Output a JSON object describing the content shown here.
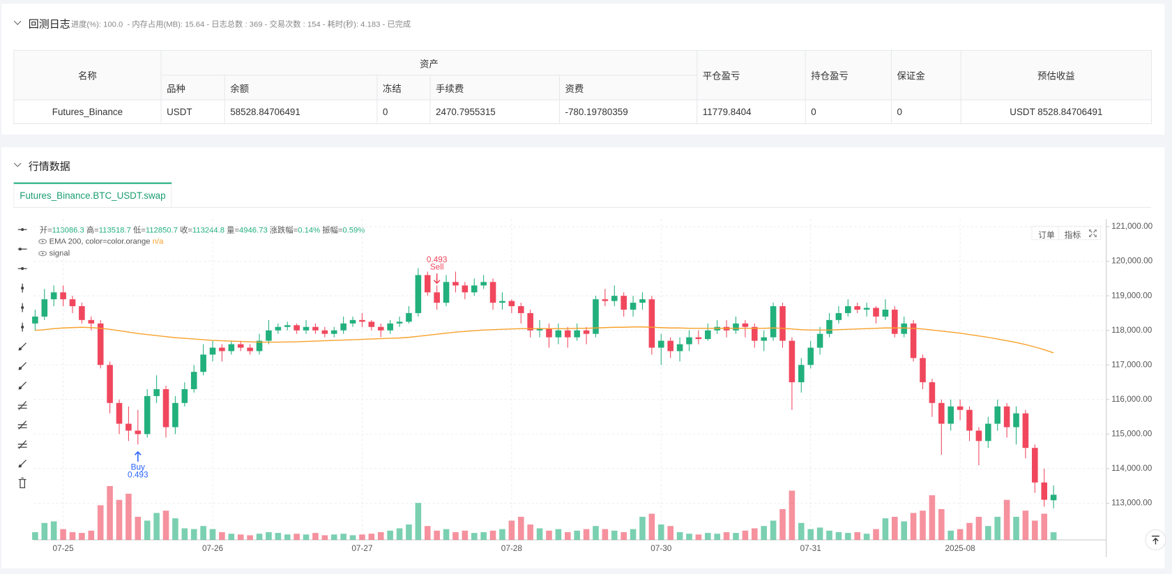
{
  "backtest_log": {
    "title": "回测日志",
    "status": "进度(%): 100.0  - 内存占用(MB): 15.64 - 日志总数 : 369 - 交易次数 : 154 - 耗时(秒): 4.183 - 已完成"
  },
  "table": {
    "headers": [
      "名称",
      "资产",
      "平仓盈亏",
      "持仓盈亏",
      "保证金",
      "预估收益"
    ],
    "sub_headers": [
      "品种",
      "余额",
      "冻结",
      "手续费",
      "资费"
    ],
    "rows": [
      [
        "Futures_Binance",
        "USDT",
        58528.84706491,
        0,
        2470.7955315,
        -780.19780359,
        11779.8404,
        0,
        0,
        "USDT 8528.84706491"
      ]
    ]
  },
  "market": {
    "title": "行情数据",
    "tab": "Futures_Binance.BTC_USDT.swap",
    "buttons": [
      "订单",
      "指标"
    ]
  },
  "chart_data": {
    "type": "candlestick",
    "legend_items": [
      {
        "label": "开=",
        "value": "113086.3"
      },
      {
        "label": "高=",
        "value": "113518.7"
      },
      {
        "label": "低=",
        "value": "112850.7"
      },
      {
        "label": "收=",
        "value": "113244.8"
      },
      {
        "label": "量=",
        "value": "4946.73"
      },
      {
        "label": "涨跌幅=",
        "value": "0.14%"
      },
      {
        "label": "振幅=",
        "value": "0.59%"
      }
    ],
    "up_color": "#22b07d",
    "down_color": "#f0475d",
    "ylim": [
      111940,
      121220
    ],
    "yticks": [
      {
        "value": 121000,
        "label": "121,000.00"
      },
      {
        "value": 120000,
        "label": "120,000.00"
      },
      {
        "value": 119000,
        "label": "119,000.00"
      },
      {
        "value": 118000,
        "label": "118,000.00"
      },
      {
        "value": 117000,
        "label": "117,000.00"
      },
      {
        "value": 116000,
        "label": "116,000.00"
      },
      {
        "value": 115000,
        "label": "115,000.00"
      },
      {
        "value": 114000,
        "label": "114,000.00"
      },
      {
        "value": 113000,
        "label": "113,000.00"
      }
    ],
    "grid": true,
    "categories": [
      null,
      null,
      null,
      "07-25",
      null,
      null,
      null,
      null,
      null,
      null,
      null,
      null,
      null,
      null,
      null,
      null,
      null,
      null,
      null,
      "07-26",
      null,
      null,
      null,
      null,
      null,
      null,
      null,
      null,
      null,
      null,
      null,
      null,
      null,
      null,
      null,
      "07-27",
      null,
      null,
      null,
      null,
      null,
      null,
      null,
      null,
      null,
      null,
      null,
      null,
      null,
      null,
      null,
      "07-28",
      null,
      null,
      null,
      null,
      null,
      null,
      null,
      null,
      null,
      null,
      null,
      null,
      null,
      null,
      null,
      "07-30",
      null,
      null,
      null,
      null,
      null,
      null,
      null,
      null,
      null,
      null,
      null,
      null,
      null,
      null,
      null,
      "07-31",
      null,
      null,
      null,
      null,
      null,
      null,
      null,
      null,
      null,
      null,
      null,
      null,
      null,
      null,
      null,
      "2025-08",
      null,
      null,
      null,
      null,
      null,
      null,
      null,
      null,
      null,
      null
    ],
    "candles": [
      [
        118200,
        118600,
        118000,
        118400
      ],
      [
        118400,
        119200,
        118300,
        118900
      ],
      [
        118900,
        119300,
        118700,
        119100
      ],
      [
        119100,
        119300,
        118700,
        118900
      ],
      [
        118900,
        119000,
        118500,
        118700
      ],
      [
        118700,
        118800,
        118200,
        118300
      ],
      [
        118300,
        118400,
        118000,
        118200
      ],
      [
        118200,
        118300,
        116900,
        117000
      ],
      [
        117000,
        117100,
        115600,
        115900
      ],
      [
        115900,
        116000,
        115000,
        115300
      ],
      [
        115300,
        115800,
        114800,
        115100
      ],
      [
        115100,
        115700,
        114700,
        115000
      ],
      [
        115000,
        116300,
        114900,
        116100
      ],
      [
        116100,
        116700,
        115900,
        116300
      ],
      [
        116300,
        116400,
        114900,
        115200
      ],
      [
        115200,
        116100,
        115000,
        115900
      ],
      [
        115900,
        116500,
        115800,
        116300
      ],
      [
        116300,
        117000,
        116200,
        116800
      ],
      [
        116800,
        117600,
        116700,
        117300
      ],
      [
        117300,
        117700,
        117100,
        117500
      ],
      [
        117500,
        117600,
        117100,
        117400
      ],
      [
        117400,
        117700,
        117300,
        117600
      ],
      [
        117600,
        117700,
        117400,
        117500
      ],
      [
        117500,
        117600,
        117300,
        117400
      ],
      [
        117400,
        117900,
        117300,
        117700
      ],
      [
        117700,
        118300,
        117600,
        118000
      ],
      [
        118000,
        118200,
        117900,
        118100
      ],
      [
        118100,
        118250,
        118000,
        118150
      ],
      [
        118150,
        118200,
        117900,
        118000
      ],
      [
        118000,
        118300,
        117900,
        118100
      ],
      [
        118100,
        118200,
        117900,
        118000
      ],
      [
        118000,
        118100,
        117800,
        117900
      ],
      [
        117900,
        118100,
        117800,
        118000
      ],
      [
        118000,
        118400,
        117900,
        118200
      ],
      [
        118200,
        118400,
        118100,
        118300
      ],
      [
        118300,
        118500,
        118100,
        118250
      ],
      [
        118250,
        118300,
        118000,
        118100
      ],
      [
        118100,
        118200,
        117800,
        118000
      ],
      [
        118000,
        118300,
        117900,
        118200
      ],
      [
        118200,
        118400,
        118100,
        118250
      ],
      [
        118250,
        118700,
        118200,
        118500
      ],
      [
        118500,
        119800,
        118400,
        119600
      ],
      [
        119600,
        119700,
        119000,
        119100
      ],
      [
        119100,
        119300,
        118600,
        118800
      ],
      [
        118800,
        119600,
        118700,
        119400
      ],
      [
        119400,
        119700,
        119100,
        119300
      ],
      [
        119300,
        119400,
        118900,
        119100
      ],
      [
        119100,
        119500,
        119000,
        119300
      ],
      [
        119300,
        119600,
        119200,
        119400
      ],
      [
        119400,
        119500,
        118600,
        118800
      ],
      [
        118800,
        119100,
        118600,
        118850
      ],
      [
        118850,
        118900,
        118500,
        118700
      ],
      [
        118700,
        118800,
        118200,
        118500
      ],
      [
        118500,
        118600,
        117800,
        118000
      ],
      [
        118000,
        118300,
        117800,
        118050
      ],
      [
        118050,
        118200,
        117500,
        117800
      ],
      [
        117800,
        118200,
        117600,
        118000
      ],
      [
        118000,
        118100,
        117500,
        117800
      ],
      [
        117800,
        118200,
        117700,
        118000
      ],
      [
        118000,
        118100,
        117600,
        117900
      ],
      [
        117900,
        119000,
        117800,
        118900
      ],
      [
        118900,
        119200,
        118700,
        118850
      ],
      [
        118850,
        119300,
        118700,
        119000
      ],
      [
        119000,
        119100,
        118400,
        118600
      ],
      [
        118600,
        119000,
        118400,
        118800
      ],
      [
        118800,
        119100,
        118600,
        118900
      ],
      [
        118900,
        119000,
        117300,
        117500
      ],
      [
        117500,
        117900,
        117000,
        117700
      ],
      [
        117700,
        117800,
        117200,
        117400
      ],
      [
        117400,
        117800,
        117100,
        117600
      ],
      [
        117600,
        118000,
        117400,
        117800
      ],
      [
        117800,
        118000,
        117600,
        117750
      ],
      [
        117750,
        118200,
        117700,
        118000
      ],
      [
        118000,
        118300,
        117900,
        118100
      ],
      [
        118100,
        118300,
        117800,
        118000
      ],
      [
        118000,
        118400,
        117900,
        118200
      ],
      [
        118200,
        118300,
        117800,
        118100
      ],
      [
        118100,
        118200,
        117500,
        117700
      ],
      [
        117700,
        118000,
        117400,
        117800
      ],
      [
        117800,
        118800,
        117700,
        118700
      ],
      [
        118700,
        118800,
        117500,
        117700
      ],
      [
        117700,
        117800,
        115700,
        116500
      ],
      [
        116500,
        117200,
        116200,
        117000
      ],
      [
        117000,
        117700,
        116900,
        117500
      ],
      [
        117500,
        118100,
        117300,
        117900
      ],
      [
        117900,
        118500,
        117800,
        118300
      ],
      [
        118300,
        118700,
        118200,
        118500
      ],
      [
        118500,
        118900,
        118400,
        118700
      ],
      [
        118700,
        118800,
        118500,
        118600
      ],
      [
        118600,
        118800,
        118400,
        118650
      ],
      [
        118650,
        118700,
        118200,
        118400
      ],
      [
        118400,
        118900,
        118300,
        118600
      ],
      [
        118600,
        118700,
        117800,
        117900
      ],
      [
        117900,
        118400,
        117800,
        118200
      ],
      [
        118200,
        118300,
        117100,
        117200
      ],
      [
        117200,
        117300,
        116300,
        116500
      ],
      [
        116500,
        116600,
        115500,
        115900
      ],
      [
        115900,
        116000,
        114400,
        115300
      ],
      [
        115300,
        116000,
        115100,
        115800
      ],
      [
        115800,
        116000,
        115400,
        115700
      ],
      [
        115700,
        115800,
        114800,
        115100
      ],
      [
        115100,
        115200,
        114100,
        114800
      ],
      [
        114800,
        115500,
        114600,
        115300
      ],
      [
        115300,
        116000,
        115100,
        115800
      ],
      [
        115800,
        115900,
        114900,
        115200
      ],
      [
        115200,
        115800,
        114700,
        115600
      ],
      [
        115600,
        115700,
        114300,
        114600
      ],
      [
        114600,
        114700,
        113300,
        113600
      ],
      [
        113600,
        114000,
        112900,
        113100
      ],
      [
        113086.3,
        113518.7,
        112850.7,
        113244.8
      ]
    ],
    "volumes": [
      5000,
      11000,
      12000,
      7000,
      5000,
      4500,
      6000,
      22500,
      35000,
      26000,
      30000,
      15000,
      12500,
      17500,
      19000,
      14000,
      7500,
      7000,
      9000,
      7000,
      5000,
      4000,
      3500,
      3000,
      4000,
      5000,
      4500,
      3500,
      4000,
      3500,
      4500,
      3000,
      3500,
      4000,
      3000,
      3500,
      4000,
      5000,
      6000,
      7500,
      10000,
      24000,
      9000,
      6000,
      7000,
      5000,
      6000,
      4500,
      5000,
      6000,
      7000,
      12500,
      15000,
      10000,
      7500,
      6000,
      7000,
      5000,
      6000,
      7000,
      9000,
      7000,
      6000,
      5000,
      7000,
      15000,
      17000,
      10000,
      9000,
      5000,
      4000,
      3500,
      4500,
      4000,
      5000,
      4500,
      6000,
      7500,
      9000,
      12500,
      20000,
      32000,
      11000,
      7000,
      8000,
      6000,
      5000,
      4500,
      5000,
      4000,
      7000,
      14000,
      15000,
      12000,
      17500,
      19000,
      29000,
      20000,
      6000,
      7000,
      11000,
      15000,
      9000,
      15000,
      26000,
      15000,
      19000,
      12500,
      17000,
      4946.73
    ],
    "series": [
      {
        "name": "EMA 200, color=color.orange",
        "status": "n/a",
        "color": "#f7a12a",
        "values": [
          118000,
          118020,
          118050,
          118070,
          118080,
          118090,
          118080,
          118060,
          118030,
          117990,
          117950,
          117910,
          117880,
          117850,
          117820,
          117790,
          117770,
          117750,
          117730,
          117710,
          117700,
          117690,
          117680,
          117670,
          117660,
          117660,
          117660,
          117665,
          117670,
          117680,
          117690,
          117700,
          117710,
          117720,
          117730,
          117740,
          117750,
          117760,
          117770,
          117780,
          117800,
          117830,
          117860,
          117890,
          117920,
          117950,
          117970,
          117990,
          118010,
          118020,
          118030,
          118040,
          118050,
          118050,
          118050,
          118050,
          118050,
          118050,
          118060,
          118060,
          118070,
          118080,
          118090,
          118090,
          118100,
          118100,
          118090,
          118080,
          118070,
          118070,
          118060,
          118060,
          118060,
          118060,
          118060,
          118060,
          118060,
          118060,
          118060,
          118070,
          118060,
          118040,
          118020,
          118010,
          118010,
          118010,
          118020,
          118030,
          118040,
          118050,
          118060,
          118070,
          118070,
          118070,
          118060,
          118040,
          118010,
          117980,
          117950,
          117920,
          117880,
          117840,
          117800,
          117750,
          117700,
          117650,
          117590,
          117520,
          117440,
          117350
        ]
      },
      {
        "name": "signal"
      }
    ],
    "signals": [
      {
        "at": 11,
        "type": "Buy",
        "value": 0.493,
        "color": "#2962ff"
      },
      {
        "at": 43,
        "type": "Sell",
        "value": 0.493,
        "color": "#f0475d"
      }
    ]
  }
}
